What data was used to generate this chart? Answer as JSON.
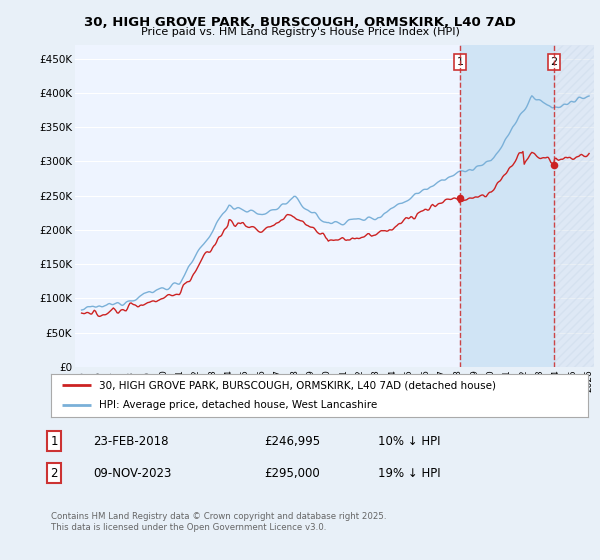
{
  "title": "30, HIGH GROVE PARK, BURSCOUGH, ORMSKIRK, L40 7AD",
  "subtitle": "Price paid vs. HM Land Registry's House Price Index (HPI)",
  "ylim": [
    0,
    470000
  ],
  "yticks": [
    0,
    50000,
    100000,
    150000,
    200000,
    250000,
    300000,
    350000,
    400000,
    450000
  ],
  "ytick_labels": [
    "£0",
    "£50K",
    "£100K",
    "£150K",
    "£200K",
    "£250K",
    "£300K",
    "£350K",
    "£400K",
    "£450K"
  ],
  "start_year": 1995,
  "end_year": 2026,
  "hpi_color": "#7ab0d8",
  "price_color": "#cc2222",
  "dashed_color": "#cc3333",
  "bg_color": "#e8f0f8",
  "plot_bg": "#eef4ff",
  "shade_between_color": "#d0e4f5",
  "grid_color": "#ffffff",
  "legend_label_price": "30, HIGH GROVE PARK, BURSCOUGH, ORMSKIRK, L40 7AD (detached house)",
  "legend_label_hpi": "HPI: Average price, detached house, West Lancashire",
  "sale1_date": "23-FEB-2018",
  "sale1_price": "£246,995",
  "sale1_hpi": "10% ↓ HPI",
  "sale1_year": 2018.12,
  "sale1_price_val": 246995,
  "sale2_date": "09-NOV-2023",
  "sale2_price": "£295,000",
  "sale2_hpi": "19% ↓ HPI",
  "sale2_year": 2023.86,
  "sale2_price_val": 295000,
  "footnote": "Contains HM Land Registry data © Crown copyright and database right 2025.\nThis data is licensed under the Open Government Licence v3.0."
}
